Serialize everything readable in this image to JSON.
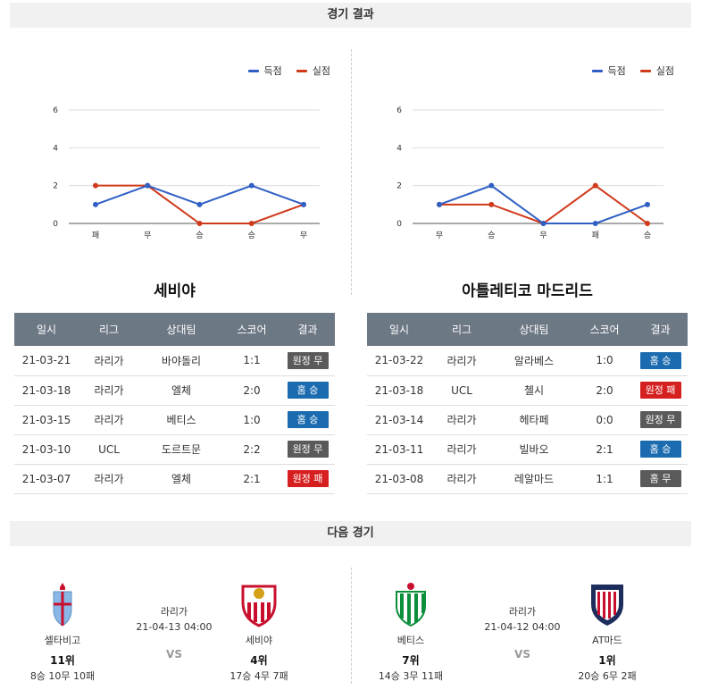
{
  "sections": {
    "results_title": "경기 결과",
    "next_title": "다음 경기"
  },
  "legend": {
    "scored": "득점",
    "conceded": "실점",
    "scored_color": "#2f5fc4",
    "conceded_color": "#d03a1b"
  },
  "chart_data": [
    {
      "type": "line",
      "categories": [
        "패",
        "무",
        "승",
        "승",
        "무"
      ],
      "series": [
        {
          "name": "득점",
          "values": [
            1,
            2,
            1,
            2,
            1
          ]
        },
        {
          "name": "실점",
          "values": [
            2,
            2,
            0,
            0,
            1
          ]
        }
      ],
      "ylim": [
        0,
        6
      ],
      "yticks": [
        0,
        2,
        4,
        6
      ],
      "grid": true,
      "legend": "top-right"
    },
    {
      "type": "line",
      "categories": [
        "무",
        "승",
        "무",
        "패",
        "승"
      ],
      "series": [
        {
          "name": "득점",
          "values": [
            1,
            2,
            0,
            0,
            1
          ]
        },
        {
          "name": "실점",
          "values": [
            1,
            1,
            0,
            2,
            0
          ]
        }
      ],
      "ylim": [
        0,
        6
      ],
      "yticks": [
        0,
        2,
        4,
        6
      ],
      "grid": true,
      "legend": "top-right"
    }
  ],
  "table_headers": [
    "일시",
    "리그",
    "상대팀",
    "스코어",
    "결과"
  ],
  "teams": [
    {
      "name": "세비야",
      "rows": [
        {
          "date": "21-03-21",
          "league": "라리가",
          "opponent": "바야돌리",
          "score": "1:1",
          "result": "원정 무",
          "kind": "draw"
        },
        {
          "date": "21-03-18",
          "league": "라리가",
          "opponent": "엘체",
          "score": "2:0",
          "result": "홈 승",
          "kind": "win"
        },
        {
          "date": "21-03-15",
          "league": "라리가",
          "opponent": "베티스",
          "score": "1:0",
          "result": "홈 승",
          "kind": "win"
        },
        {
          "date": "21-03-10",
          "league": "UCL",
          "opponent": "도르트문",
          "score": "2:2",
          "result": "원정 무",
          "kind": "draw"
        },
        {
          "date": "21-03-07",
          "league": "라리가",
          "opponent": "엘체",
          "score": "2:1",
          "result": "원정 패",
          "kind": "lose"
        }
      ]
    },
    {
      "name": "아틀레티코 마드리드",
      "rows": [
        {
          "date": "21-03-22",
          "league": "라리가",
          "opponent": "알라베스",
          "score": "1:0",
          "result": "홈 승",
          "kind": "win"
        },
        {
          "date": "21-03-18",
          "league": "UCL",
          "opponent": "첼시",
          "score": "2:0",
          "result": "원정 패",
          "kind": "lose"
        },
        {
          "date": "21-03-14",
          "league": "라리가",
          "opponent": "헤타페",
          "score": "0:0",
          "result": "원정 무",
          "kind": "draw"
        },
        {
          "date": "21-03-11",
          "league": "라리가",
          "opponent": "빌바오",
          "score": "2:1",
          "result": "홈 승",
          "kind": "win"
        },
        {
          "date": "21-03-08",
          "league": "라리가",
          "opponent": "레알마드",
          "score": "1:1",
          "result": "홈 무",
          "kind": "draw"
        }
      ]
    }
  ],
  "next_matches": [
    {
      "league": "라리가",
      "time": "21-04-13 04:00",
      "vs": "VS",
      "home": {
        "name": "셀타비고",
        "rank": "11위",
        "record": "8승 10무 10패",
        "logo": "celta-vigo-crest"
      },
      "away": {
        "name": "세비야",
        "rank": "4위",
        "record": "17승 4무 7패",
        "logo": "sevilla-crest"
      }
    },
    {
      "league": "라리가",
      "time": "21-04-12 04:00",
      "vs": "VS",
      "home": {
        "name": "베티스",
        "rank": "7위",
        "record": "14승 3무 11패",
        "logo": "real-betis-crest"
      },
      "away": {
        "name": "AT마드",
        "rank": "1위",
        "record": "20승 6무 2패",
        "logo": "atletico-madrid-crest"
      }
    }
  ]
}
